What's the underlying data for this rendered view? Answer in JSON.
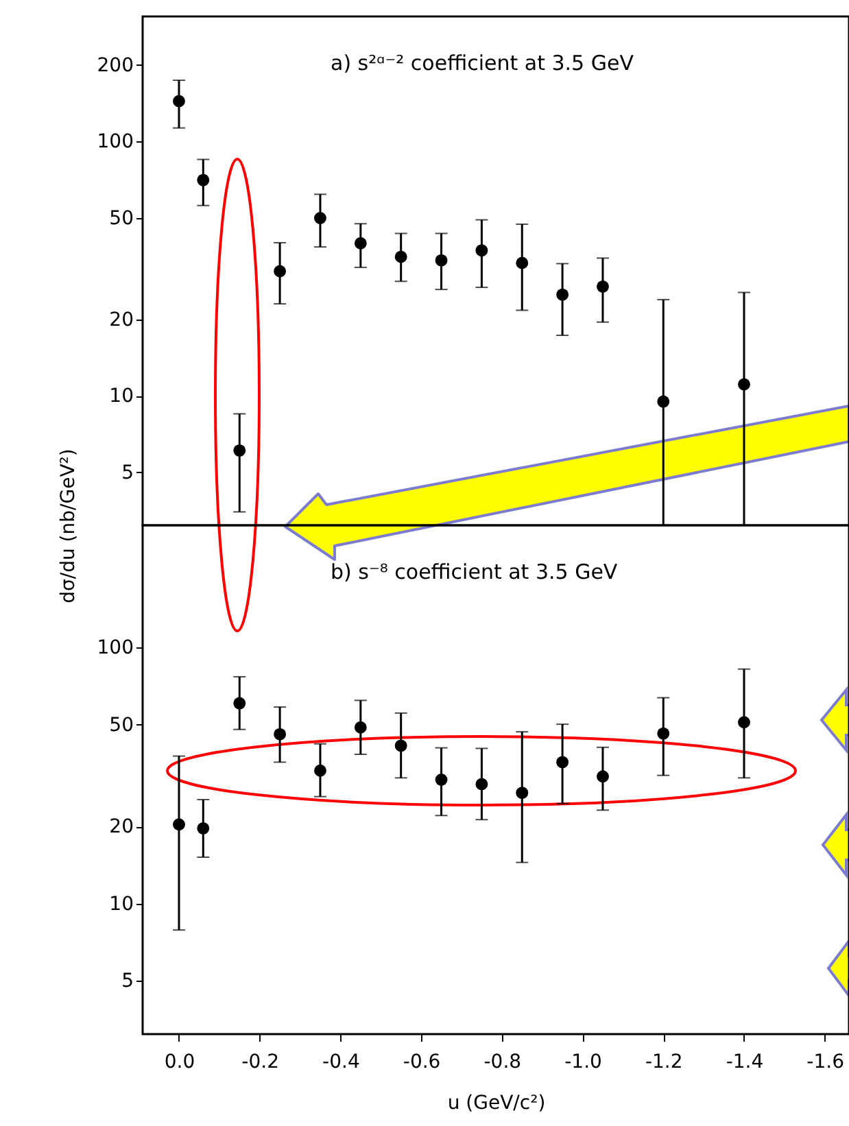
{
  "chart_data": [
    {
      "type": "scatter",
      "ylabel": "dσ/du (nb/GeV²)",
      "annotations": [
        "a)  s²ᵅ⁻² coefficient at 3.5 GeV"
      ],
      "log": "y",
      "marker": "circle",
      "tick_labels": "y",
      "xlim": [
        0.09,
        -1.66
      ],
      "ylim": [
        3.1,
        310
      ],
      "yticks": [
        5,
        10,
        20,
        50,
        100,
        200
      ],
      "x": [
        0.0,
        -0.06,
        -0.15,
        -0.25,
        -0.35,
        -0.45,
        -0.55,
        -0.65,
        -0.75,
        -0.85,
        -0.95,
        -1.05,
        -1.2,
        -1.4
      ],
      "series": [
        {
          "color": "#000000",
          "values": [
            144,
            70.5,
            6.1,
            30.9,
            50,
            39.8,
            35.2,
            34.1,
            37.3,
            33.3,
            25,
            26.9,
            9.5,
            11.1
          ],
          "errors": [
            [
              113,
              174
            ],
            [
              56,
              85
            ],
            [
              3.5,
              8.5
            ],
            [
              23,
              40
            ],
            [
              38.5,
              62
            ],
            [
              32,
              47.5
            ],
            [
              28.2,
              43.5
            ],
            [
              26.2,
              43.5
            ],
            [
              26.7,
              49.2
            ],
            [
              21.7,
              47.3
            ],
            [
              17.3,
              33.1
            ],
            [
              19.5,
              34.8
            ],
            [
              3.1,
              23.9
            ],
            [
              3.1,
              25.5
            ]
          ]
        }
      ]
    },
    {
      "type": "scatter",
      "xlabel": "u (GeV/c²)",
      "annotations": [
        "b)  s⁻⁸ coefficient at 3.5 GeV"
      ],
      "log": "y",
      "marker": "circle",
      "xlim": [
        0.09,
        -1.66
      ],
      "xticks": [
        {
          "value": 0,
          "label": "0.0"
        },
        {
          "value": -0.2,
          "label": "-0.2"
        },
        {
          "value": -0.4,
          "label": "-0.4"
        },
        {
          "value": -0.6,
          "label": "-0.6"
        },
        {
          "value": -0.8,
          "label": "-0.8"
        },
        {
          "value": -1.0,
          "label": "-1.0"
        },
        {
          "value": -1.2,
          "label": "-1.2"
        },
        {
          "value": -1.4,
          "label": "-1.4"
        },
        {
          "value": -1.6,
          "label": "-1.6"
        }
      ],
      "ylim": [
        3.1,
        300
      ],
      "yticks": [
        5,
        10,
        20,
        50,
        100
      ],
      "x": [
        0.0,
        -0.06,
        -0.15,
        -0.25,
        -0.35,
        -0.45,
        -0.55,
        -0.65,
        -0.75,
        -0.85,
        -0.95,
        -1.05,
        -1.2,
        -1.4
      ],
      "series": [
        {
          "color": "#000000",
          "values": [
            20.4,
            19.7,
            60.6,
            45.9,
            33.1,
            48.8,
            41.4,
            30.5,
            29.3,
            27.1,
            35.7,
            31.4,
            46.2,
            51.1
          ],
          "errors": [
            [
              7.9,
              37.7
            ],
            [
              15.2,
              25.5
            ],
            [
              47.9,
              76.9
            ],
            [
              35.7,
              58.6
            ],
            [
              26.2,
              42.1
            ],
            [
              38.3,
              62.2
            ],
            [
              31.0,
              55.5
            ],
            [
              22.1,
              40.6
            ],
            [
              21.3,
              40.4
            ],
            [
              14.5,
              46.9
            ],
            [
              24.6,
              50.2
            ],
            [
              23.2,
              40.8
            ],
            [
              31.7,
              63.7
            ],
            [
              31.0,
              82.4
            ]
          ]
        }
      ]
    }
  ]
}
